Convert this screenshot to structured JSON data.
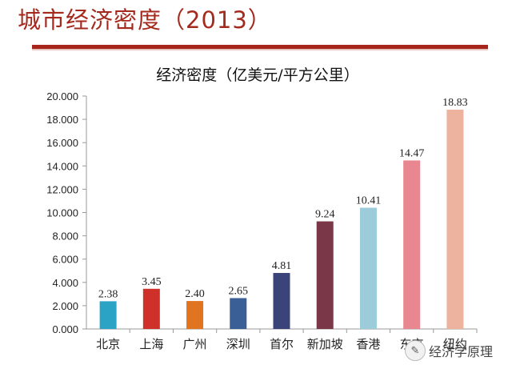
{
  "page": {
    "title": "城市经济密度（2013）",
    "watermark": "经济学原理"
  },
  "chart_data": {
    "type": "bar",
    "title": "经济密度（亿美元/平方公里）",
    "categories": [
      "北京",
      "上海",
      "广州",
      "深圳",
      "首尔",
      "新加坡",
      "香港",
      "东京",
      "纽约"
    ],
    "values": [
      2.38,
      3.45,
      2.4,
      2.65,
      4.81,
      9.24,
      10.41,
      14.47,
      18.83
    ],
    "value_labels": [
      "2.38",
      "3.45",
      "2.40",
      "2.65",
      "4.81",
      "9.24",
      "10.41",
      "14.47",
      "18.83"
    ],
    "colors": [
      "#2ba3c4",
      "#d0302a",
      "#e07421",
      "#3a5f96",
      "#3b4478",
      "#7a3748",
      "#9ccbd9",
      "#e8878f",
      "#eeb39e"
    ],
    "ylim": [
      0,
      20
    ],
    "yticks": [
      0,
      2,
      4,
      6,
      8,
      10,
      12,
      14,
      16,
      18,
      20
    ],
    "ytick_labels": [
      "0.000",
      "2.000",
      "4.000",
      "6.000",
      "8.000",
      "10.000",
      "12.000",
      "14.000",
      "16.000",
      "18.000",
      "20.000"
    ],
    "xlabel": "",
    "ylabel": "",
    "grid": false
  }
}
